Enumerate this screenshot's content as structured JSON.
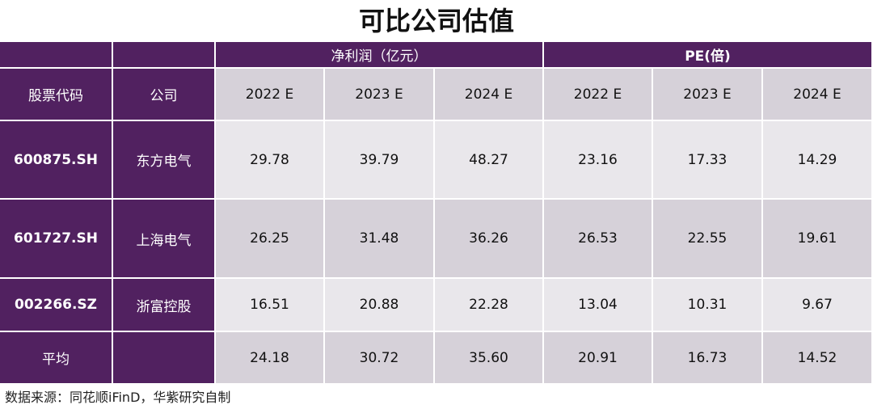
{
  "title": "可比公司估值",
  "table": {
    "header_groups": [
      "净利润（亿元）",
      "PE(倍)"
    ],
    "columns": [
      "股票代码",
      "公司",
      "2022 E",
      "2023 E",
      "2024 E",
      "2022 E",
      "2023 E",
      "2024 E"
    ],
    "rows": [
      [
        "600875.SH",
        "东方电气",
        "29.78",
        "39.79",
        "48.27",
        "23.16",
        "17.33",
        "14.29"
      ],
      [
        "601727.SH",
        "上海电气",
        "26.25",
        "31.48",
        "36.26",
        "26.53",
        "22.55",
        "19.61"
      ],
      [
        "002266.SZ",
        "浙富控股",
        "16.51",
        "20.88",
        "22.28",
        "13.04",
        "10.31",
        "9.67"
      ]
    ],
    "average": {
      "label": "平均",
      "values": [
        "24.18",
        "30.72",
        "35.60",
        "20.91",
        "16.73",
        "14.52"
      ]
    }
  },
  "source": "数据来源：同花顺iFinD，华紫研究自制"
}
